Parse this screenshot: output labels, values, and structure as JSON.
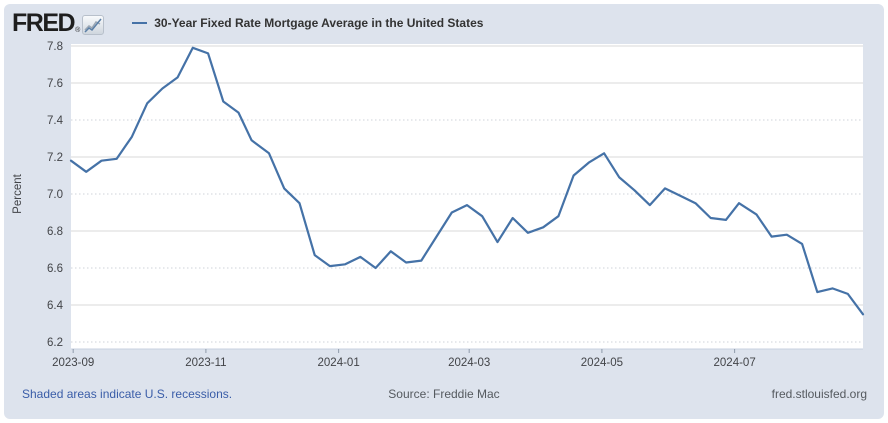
{
  "header": {
    "logo_text": "FRED",
    "logo_reg": "®",
    "legend_label": "30-Year Fixed Rate Mortgage Average in the United States"
  },
  "footer": {
    "recession_note": "Shaded areas indicate U.S. recessions.",
    "source": "Source: Freddie Mac",
    "site": "fred.stlouisfed.org"
  },
  "colors": {
    "panel_bg": "#dde3ed",
    "plot_bg": "#ffffff",
    "line": "#4572a7",
    "grid_solid": "#d9d9d9",
    "grid_dotted": "#cfd3d9",
    "axis_line": "#c8d2e0",
    "tick": "#8e9aaa",
    "axis_text": "#424448",
    "title_text": "#333333",
    "link_blue": "#3a5da8",
    "footer_text": "#555a5f"
  },
  "chart_data": {
    "type": "line",
    "title": "30-Year Fixed Rate Mortgage Average in the United States",
    "xlabel": "",
    "ylabel": "Percent",
    "ylim": [
      6.2,
      7.8
    ],
    "yticks": [
      7.8,
      7.6,
      7.4,
      7.2,
      7.0,
      6.8,
      6.6,
      6.4,
      6.2
    ],
    "solid_gridlines": [
      7.8,
      7.6,
      7.2,
      6.8,
      6.4
    ],
    "legend_position": "top",
    "grid": "horizontal",
    "xticks": [
      {
        "label": "2023-09",
        "date": "2023-09-01"
      },
      {
        "label": "2023-11",
        "date": "2023-11-01"
      },
      {
        "label": "2024-01",
        "date": "2024-01-01"
      },
      {
        "label": "2024-03",
        "date": "2024-03-01"
      },
      {
        "label": "2024-05",
        "date": "2024-05-01"
      },
      {
        "label": "2024-07",
        "date": "2024-07-01"
      }
    ],
    "series": [
      {
        "name": "30-Year Fixed Rate Mortgage Average in the United States",
        "color": "#4572a7",
        "dates": [
          "2023-08-31",
          "2023-09-07",
          "2023-09-14",
          "2023-09-21",
          "2023-09-28",
          "2023-10-05",
          "2023-10-12",
          "2023-10-19",
          "2023-10-26",
          "2023-11-02",
          "2023-11-09",
          "2023-11-16",
          "2023-11-22",
          "2023-11-30",
          "2023-12-07",
          "2023-12-14",
          "2023-12-21",
          "2023-12-28",
          "2024-01-04",
          "2024-01-11",
          "2024-01-18",
          "2024-01-25",
          "2024-02-01",
          "2024-02-08",
          "2024-02-15",
          "2024-02-22",
          "2024-02-29",
          "2024-03-07",
          "2024-03-14",
          "2024-03-21",
          "2024-03-28",
          "2024-04-04",
          "2024-04-11",
          "2024-04-18",
          "2024-04-25",
          "2024-05-02",
          "2024-05-09",
          "2024-05-16",
          "2024-05-23",
          "2024-05-30",
          "2024-06-06",
          "2024-06-13",
          "2024-06-20",
          "2024-06-27",
          "2024-07-03",
          "2024-07-11",
          "2024-07-18",
          "2024-07-25",
          "2024-08-01",
          "2024-08-08",
          "2024-08-15",
          "2024-08-22",
          "2024-08-29"
        ],
        "values": [
          7.18,
          7.12,
          7.18,
          7.19,
          7.31,
          7.49,
          7.57,
          7.63,
          7.79,
          7.76,
          7.5,
          7.44,
          7.29,
          7.22,
          7.03,
          6.95,
          6.67,
          6.61,
          6.62,
          6.66,
          6.6,
          6.69,
          6.63,
          6.64,
          6.77,
          6.9,
          6.94,
          6.88,
          6.74,
          6.87,
          6.79,
          6.82,
          6.88,
          7.1,
          7.17,
          7.22,
          7.09,
          7.02,
          6.94,
          7.03,
          6.99,
          6.95,
          6.87,
          6.86,
          6.95,
          6.89,
          6.77,
          6.78,
          6.73,
          6.47,
          6.49,
          6.46,
          6.35
        ]
      }
    ]
  }
}
